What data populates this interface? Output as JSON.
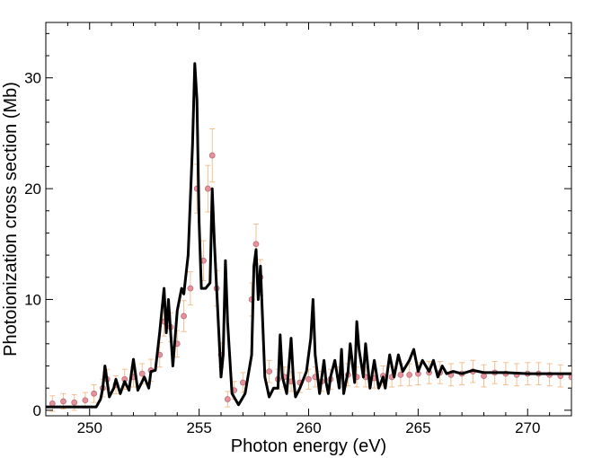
{
  "chart_data": {
    "type": "line",
    "xlabel": "Photon energy (eV)",
    "ylabel": "Photoionization cross section (Mb)",
    "xlim": [
      248.0,
      272.0
    ],
    "ylim": [
      -0.5,
      35.0
    ],
    "x_ticks": [
      250,
      255,
      260,
      265,
      270
    ],
    "x_tick_labels": [
      "250",
      "255",
      "260",
      "265",
      "270"
    ],
    "y_ticks": [
      0,
      10,
      20,
      30
    ],
    "y_tick_labels": [
      "0",
      "10",
      "20",
      "30"
    ],
    "grid": false,
    "series": [
      {
        "kind": "experiment-with-error-bars",
        "color": "#e8909a",
        "marker_edge": "#b8707a",
        "errorbar_color": "#f2bf90",
        "x": [
          248.3,
          248.8,
          249.3,
          249.8,
          250.2,
          250.6,
          250.8,
          251.2,
          251.6,
          252.0,
          252.4,
          252.8,
          253.2,
          253.4,
          253.7,
          254.0,
          254.3,
          254.6,
          254.9,
          255.2,
          255.4,
          255.6,
          255.8,
          256.0,
          256.3,
          256.6,
          257.0,
          257.4,
          257.6,
          257.8,
          258.2,
          258.6,
          258.9,
          259.2,
          259.6,
          260.0,
          260.3,
          260.6,
          261.0,
          261.4,
          261.8,
          262.2,
          262.6,
          263.0,
          263.4,
          263.8,
          264.2,
          264.6,
          265.0,
          265.5,
          266.0,
          266.5,
          267.0,
          267.5,
          268.0,
          268.5,
          269.0,
          269.5,
          270.0,
          270.5,
          271.0,
          271.5,
          272.0
        ],
        "y": [
          0.6,
          0.8,
          0.7,
          0.9,
          1.5,
          2.0,
          2.8,
          2.3,
          2.8,
          3.0,
          3.3,
          3.6,
          5.0,
          8.0,
          7.5,
          6.0,
          8.5,
          11.0,
          20.0,
          13.5,
          20.0,
          23.0,
          11.0,
          5.0,
          1.0,
          1.8,
          2.5,
          10.0,
          15.0,
          12.0,
          3.5,
          2.8,
          3.0,
          2.6,
          2.5,
          2.8,
          3.0,
          2.6,
          2.8,
          3.0,
          3.2,
          3.0,
          3.0,
          2.9,
          3.1,
          3.0,
          3.2,
          3.2,
          3.3,
          3.4,
          3.4,
          3.2,
          3.3,
          3.5,
          3.1,
          3.4,
          3.3,
          3.2,
          3.3,
          3.3,
          3.2,
          3.1,
          3.0
        ],
        "err": [
          0.7,
          0.7,
          0.7,
          0.7,
          0.8,
          0.8,
          0.9,
          0.8,
          0.9,
          0.9,
          0.9,
          1.0,
          1.1,
          1.3,
          1.3,
          1.2,
          1.4,
          1.5,
          2.2,
          1.8,
          2.1,
          2.4,
          1.6,
          1.1,
          0.7,
          0.8,
          0.9,
          1.5,
          1.8,
          1.6,
          1.0,
          0.9,
          0.9,
          0.9,
          0.9,
          0.9,
          0.9,
          0.9,
          0.9,
          0.9,
          1.0,
          0.9,
          0.9,
          0.9,
          0.9,
          0.9,
          1.0,
          1.0,
          1.0,
          1.0,
          1.0,
          1.0,
          1.0,
          1.0,
          1.0,
          1.0,
          1.0,
          1.0,
          1.0,
          1.0,
          1.0,
          1.0,
          1.0
        ]
      },
      {
        "kind": "theory-line",
        "color": "#000000",
        "x": [
          248.0,
          250.3,
          250.5,
          250.6,
          250.7,
          250.9,
          251.1,
          251.2,
          251.4,
          251.6,
          251.8,
          252.0,
          252.2,
          252.5,
          252.7,
          252.8,
          253.0,
          253.2,
          253.4,
          253.5,
          253.6,
          253.8,
          254.0,
          254.2,
          254.3,
          254.5,
          254.7,
          254.8,
          254.9,
          255.0,
          255.1,
          255.3,
          255.5,
          255.6,
          255.7,
          255.8,
          256.0,
          256.1,
          256.2,
          256.3,
          256.5,
          256.8,
          257.1,
          257.4,
          257.5,
          257.6,
          257.7,
          257.8,
          258.0,
          258.2,
          258.4,
          258.6,
          258.7,
          258.8,
          259.0,
          259.2,
          259.3,
          259.4,
          259.6,
          259.9,
          260.1,
          260.2,
          260.3,
          260.5,
          260.7,
          260.8,
          260.9,
          261.0,
          261.2,
          261.4,
          261.5,
          261.6,
          261.8,
          261.9,
          262.1,
          262.2,
          262.3,
          262.5,
          262.6,
          262.8,
          263.0,
          263.2,
          263.4,
          263.5,
          263.7,
          263.9,
          264.1,
          264.3,
          264.6,
          264.8,
          265.0,
          265.2,
          265.5,
          265.7,
          265.9,
          266.1,
          266.3,
          266.6,
          267.0,
          267.5,
          268.0,
          269.0,
          270.0,
          271.0,
          272.0
        ],
        "y": [
          0.3,
          0.3,
          1.0,
          2.0,
          4.0,
          1.2,
          2.0,
          2.8,
          1.5,
          2.6,
          1.8,
          4.6,
          1.8,
          3.0,
          2.0,
          3.5,
          3.6,
          7.0,
          11.0,
          7.0,
          10.0,
          4.0,
          9.0,
          11.0,
          10.5,
          14.0,
          24.0,
          31.3,
          28.0,
          17.0,
          11.0,
          11.0,
          11.5,
          20.0,
          15.0,
          11.0,
          3.0,
          5.0,
          13.5,
          8.0,
          1.5,
          0.5,
          1.5,
          5.0,
          13.0,
          14.5,
          10.0,
          13.0,
          3.0,
          1.2,
          2.0,
          2.0,
          6.8,
          3.0,
          1.5,
          6.5,
          3.0,
          1.2,
          2.0,
          3.5,
          6.5,
          10.0,
          5.0,
          1.5,
          4.5,
          2.5,
          1.5,
          3.0,
          4.5,
          2.0,
          5.5,
          1.5,
          3.5,
          6.0,
          2.5,
          8.0,
          5.5,
          3.0,
          6.0,
          2.0,
          4.5,
          2.0,
          3.0,
          2.0,
          5.0,
          3.0,
          5.0,
          3.5,
          4.5,
          5.5,
          3.5,
          4.5,
          3.5,
          4.5,
          3.0,
          4.0,
          3.3,
          3.5,
          3.3,
          3.6,
          3.4,
          3.4,
          3.3,
          3.3,
          3.3
        ]
      }
    ]
  }
}
